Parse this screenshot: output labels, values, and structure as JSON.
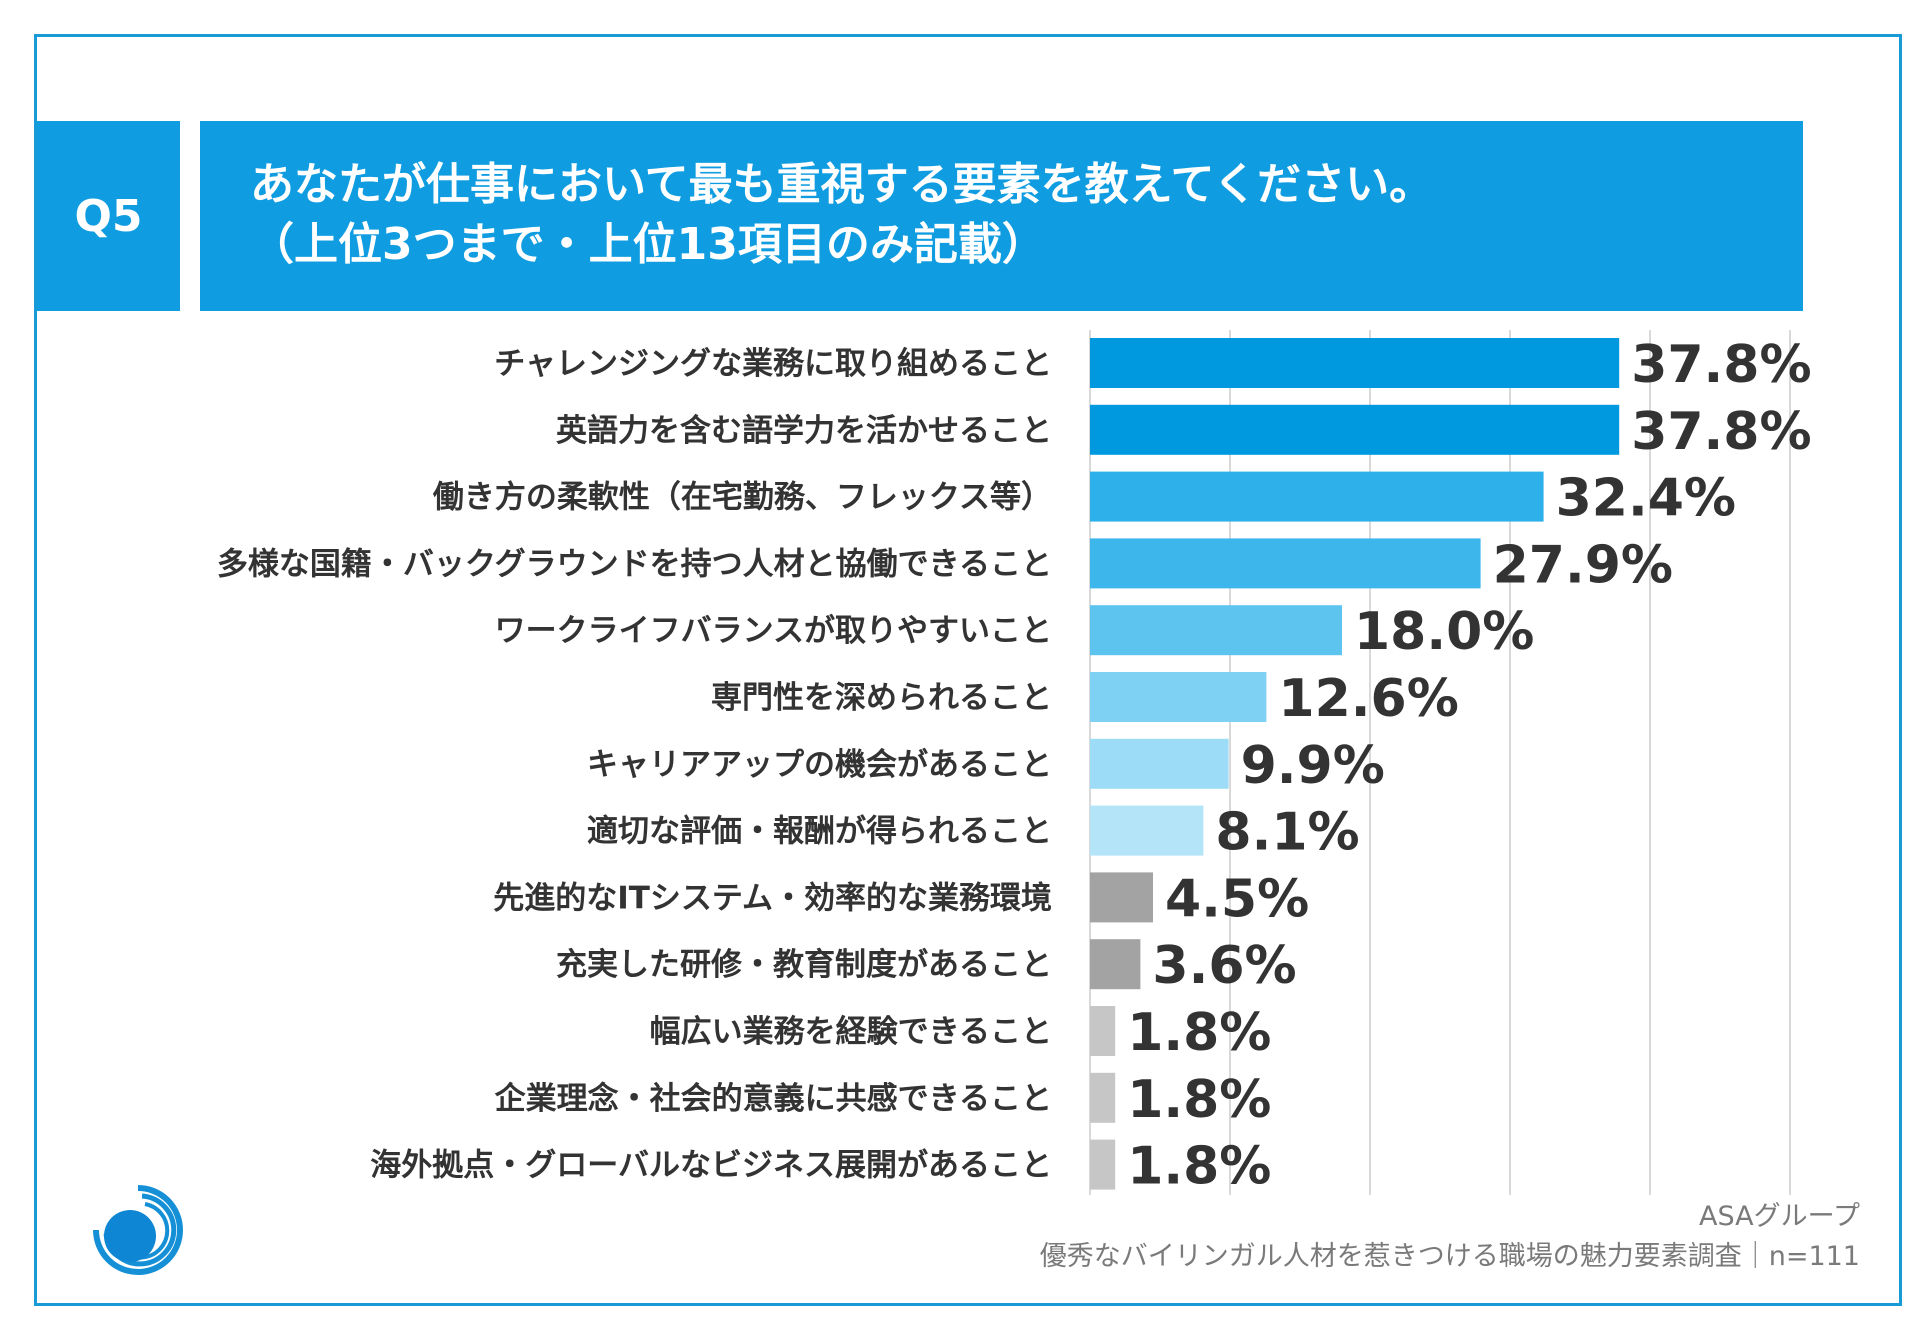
{
  "header": {
    "badge": "Q5",
    "title_line1": "あなたが仕事において最も重視する要素を教えてください。",
    "title_line2": "（上位3つまで・上位13項目のみ記載）"
  },
  "footer": {
    "org": "ASAグループ",
    "survey": "優秀なバイリンガル人材を惹きつける職場の魅力要素調査｜n=111"
  },
  "logo": {
    "icon": "asa-group-logo-icon"
  },
  "chart_data": {
    "type": "bar",
    "orientation": "horizontal",
    "title": "あなたが仕事において最も重視する要素を教えてください。（上位3つまで・上位13項目のみ記載）",
    "xlabel": "",
    "ylabel": "",
    "xlim": [
      0,
      50
    ],
    "grid": true,
    "value_suffix": "%",
    "categories": [
      "チャレンジングな業務に取り組めること",
      "英語力を含む語学力を活かせること",
      "働き方の柔軟性（在宅勤務、フレックス等）",
      "多様な国籍・バックグラウンドを持つ人材と協働できること",
      "ワークライフバランスが取りやすいこと",
      "専門性を深められること",
      "キャリアアップの機会があること",
      "適切な評価・報酬が得られること",
      "先進的なITシステム・効率的な業務環境",
      "充実した研修・教育制度があること",
      "幅広い業務を経験できること",
      "企業理念・社会的意義に共感できること",
      "海外拠点・グローバルなビジネス展開があること"
    ],
    "values": [
      37.8,
      37.8,
      32.4,
      27.9,
      18.0,
      12.6,
      9.9,
      8.1,
      4.5,
      3.6,
      1.8,
      1.8,
      1.8
    ],
    "labels": [
      "37.8%",
      "37.8%",
      "32.4%",
      "27.9%",
      "18.0%",
      "12.6%",
      "9.9%",
      "8.1%",
      "4.5%",
      "3.6%",
      "1.8%",
      "1.8%",
      "1.8%"
    ],
    "colors": [
      "#0099e0",
      "#0099e0",
      "#2eb0ea",
      "#3db6ec",
      "#5dc4f0",
      "#7fd1f3",
      "#9cdcf6",
      "#b3e4f8",
      "#a3a3a3",
      "#a3a3a3",
      "#c6c6c6",
      "#c6c6c6",
      "#c6c6c6"
    ],
    "gridline_color": "#d9d9d9"
  }
}
